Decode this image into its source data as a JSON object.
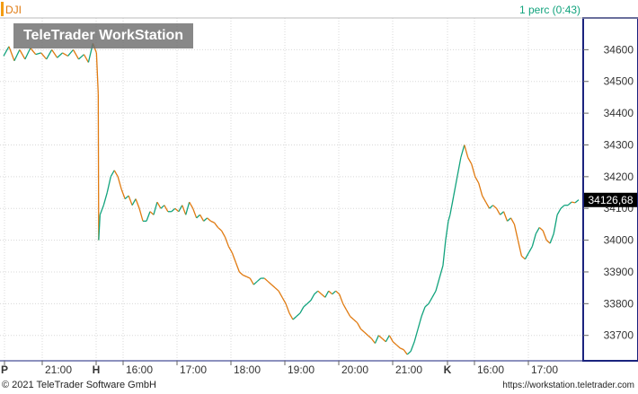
{
  "header": {
    "symbol": "DJI",
    "interval": "1 perc (0:43)",
    "watermark": "TeleTrader WorkStation"
  },
  "footer": {
    "copyright": "© 2021 TeleTrader Software GmbH",
    "url": "https://workstation.teletrader.com"
  },
  "colors": {
    "up": "#12a37d",
    "down": "#e07a10",
    "grid": "#d8d8d8",
    "axis_border": "#1a237e",
    "last_price_bg": "#000000"
  },
  "chart_data": {
    "type": "line",
    "title": "DJI",
    "y_axis": {
      "ticks": [
        33700,
        33800,
        33900,
        34000,
        34100,
        34200,
        34300,
        34400,
        34500,
        34600
      ],
      "tick_labels": [
        "33700",
        "33800",
        "33900",
        "34000",
        "34100",
        "34200",
        "34300",
        "34400",
        "34500",
        "34600"
      ],
      "ylim": [
        33620,
        34700
      ],
      "position": "right"
    },
    "x_axis": {
      "tick_labels": [
        "P",
        "21:00",
        "H",
        "16:00",
        "17:00",
        "18:00",
        "19:00",
        "20:00",
        "21:00",
        "K",
        "16:00",
        "17:00"
      ]
    },
    "last_price": 34126.68,
    "last_price_label": "34126,68",
    "series": [
      {
        "points": [
          [
            0,
            34580
          ],
          [
            6,
            34610
          ],
          [
            12,
            34565
          ],
          [
            18,
            34600
          ],
          [
            24,
            34570
          ],
          [
            30,
            34605
          ],
          [
            36,
            34585
          ],
          [
            42,
            34590
          ],
          [
            48,
            34570
          ],
          [
            54,
            34600
          ],
          [
            60,
            34575
          ],
          [
            66,
            34590
          ],
          [
            72,
            34580
          ],
          [
            78,
            34600
          ],
          [
            84,
            34570
          ],
          [
            90,
            34585
          ],
          [
            95,
            34560
          ],
          [
            100,
            34620
          ],
          [
            104,
            34590
          ],
          [
            106,
            34460
          ],
          [
            106.5,
            34000
          ],
          [
            108,
            34080
          ],
          [
            112,
            34110
          ],
          [
            116,
            34150
          ],
          [
            120,
            34200
          ],
          [
            124,
            34220
          ],
          [
            128,
            34200
          ],
          [
            132,
            34160
          ],
          [
            136,
            34130
          ],
          [
            140,
            34140
          ],
          [
            144,
            34110
          ],
          [
            148,
            34130
          ],
          [
            152,
            34100
          ],
          [
            156,
            34060
          ],
          [
            160,
            34060
          ],
          [
            164,
            34090
          ],
          [
            168,
            34080
          ],
          [
            172,
            34120
          ],
          [
            176,
            34100
          ],
          [
            180,
            34110
          ],
          [
            184,
            34090
          ],
          [
            188,
            34090
          ],
          [
            192,
            34100
          ],
          [
            196,
            34090
          ],
          [
            200,
            34110
          ],
          [
            204,
            34080
          ],
          [
            208,
            34120
          ],
          [
            212,
            34100
          ],
          [
            216,
            34070
          ],
          [
            220,
            34080
          ],
          [
            224,
            34060
          ],
          [
            228,
            34070
          ],
          [
            232,
            34060
          ],
          [
            236,
            34055
          ],
          [
            240,
            34040
          ],
          [
            244,
            34030
          ],
          [
            248,
            34010
          ],
          [
            252,
            33980
          ],
          [
            256,
            33960
          ],
          [
            260,
            33930
          ],
          [
            264,
            33900
          ],
          [
            268,
            33890
          ],
          [
            272,
            33885
          ],
          [
            276,
            33880
          ],
          [
            280,
            33860
          ],
          [
            284,
            33870
          ],
          [
            288,
            33880
          ],
          [
            292,
            33880
          ],
          [
            296,
            33870
          ],
          [
            300,
            33860
          ],
          [
            304,
            33850
          ],
          [
            308,
            33840
          ],
          [
            312,
            33820
          ],
          [
            316,
            33800
          ],
          [
            320,
            33770
          ],
          [
            324,
            33750
          ],
          [
            328,
            33760
          ],
          [
            332,
            33770
          ],
          [
            336,
            33790
          ],
          [
            340,
            33800
          ],
          [
            344,
            33810
          ],
          [
            348,
            33830
          ],
          [
            352,
            33840
          ],
          [
            356,
            33830
          ],
          [
            360,
            33820
          ],
          [
            364,
            33840
          ],
          [
            368,
            33830
          ],
          [
            372,
            33840
          ],
          [
            376,
            33830
          ],
          [
            380,
            33800
          ],
          [
            384,
            33780
          ],
          [
            388,
            33760
          ],
          [
            392,
            33750
          ],
          [
            396,
            33740
          ],
          [
            400,
            33720
          ],
          [
            404,
            33710
          ],
          [
            408,
            33700
          ],
          [
            412,
            33690
          ],
          [
            416,
            33675
          ],
          [
            420,
            33700
          ],
          [
            424,
            33690
          ],
          [
            428,
            33680
          ],
          [
            432,
            33700
          ],
          [
            436,
            33680
          ],
          [
            440,
            33670
          ],
          [
            444,
            33660
          ],
          [
            448,
            33655
          ],
          [
            452,
            33640
          ],
          [
            456,
            33650
          ],
          [
            460,
            33680
          ],
          [
            464,
            33720
          ],
          [
            468,
            33760
          ],
          [
            472,
            33790
          ],
          [
            476,
            33800
          ],
          [
            480,
            33820
          ],
          [
            484,
            33840
          ],
          [
            488,
            33880
          ],
          [
            492,
            33920
          ],
          [
            495,
            34000
          ],
          [
            498,
            34060
          ],
          [
            500,
            34080
          ],
          [
            504,
            34140
          ],
          [
            508,
            34200
          ],
          [
            512,
            34260
          ],
          [
            516,
            34300
          ],
          [
            518,
            34280
          ],
          [
            520,
            34260
          ],
          [
            524,
            34240
          ],
          [
            528,
            34200
          ],
          [
            532,
            34180
          ],
          [
            536,
            34140
          ],
          [
            540,
            34120
          ],
          [
            544,
            34100
          ],
          [
            548,
            34110
          ],
          [
            552,
            34100
          ],
          [
            556,
            34080
          ],
          [
            560,
            34090
          ],
          [
            564,
            34060
          ],
          [
            568,
            34070
          ],
          [
            572,
            34050
          ],
          [
            576,
            34000
          ],
          [
            580,
            33950
          ],
          [
            584,
            33940
          ],
          [
            588,
            33960
          ],
          [
            592,
            33980
          ],
          [
            596,
            34020
          ],
          [
            600,
            34040
          ],
          [
            604,
            34030
          ],
          [
            608,
            34000
          ],
          [
            612,
            33990
          ],
          [
            616,
            34020
          ],
          [
            620,
            34080
          ],
          [
            624,
            34100
          ],
          [
            628,
            34110
          ],
          [
            632,
            34110
          ],
          [
            636,
            34120
          ],
          [
            640,
            34118
          ],
          [
            644,
            34127
          ]
        ]
      }
    ]
  }
}
